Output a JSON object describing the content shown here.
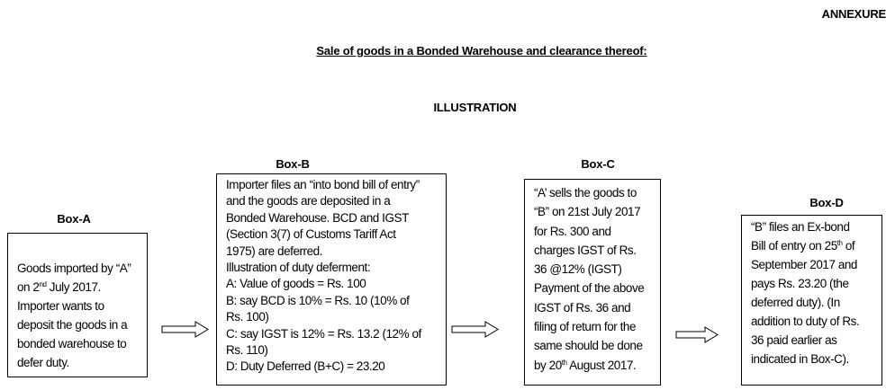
{
  "header": {
    "annexure": "ANNEXURE",
    "title": "Sale of goods in a Bonded Warehouse and clearance thereof:",
    "subtitle": "ILLUSTRATION"
  },
  "boxes": [
    {
      "label": "Box-A",
      "lines": [
        {
          "a": "Goods imported by “A”"
        },
        {
          "a": "on 2",
          "sup": "nd",
          "b": " July 2017."
        },
        {
          "a": "Importer wants to"
        },
        {
          "a": "deposit the goods in a"
        },
        {
          "a": "bonded warehouse to"
        },
        {
          "a": "defer duty."
        }
      ]
    },
    {
      "label": "Box-B",
      "lines": [
        {
          "a": "Importer files an “into bond bill of entry”"
        },
        {
          "a": "and the goods are deposited in a"
        },
        {
          "a": "Bonded Warehouse. BCD and IGST"
        },
        {
          "a": "(Section 3(7) of Customs Tariff Act"
        },
        {
          "a": "1975) are deferred."
        },
        {
          "a": "Illustration of duty deferment:"
        },
        {
          "a": "A: Value of goods = Rs. 100"
        },
        {
          "a": "B: say BCD is 10% = Rs. 10 (10% of"
        },
        {
          "a": "Rs. 100)"
        },
        {
          "a": "C: say IGST is 12% = Rs. 13.2 (12% of"
        },
        {
          "a": "Rs. 110)"
        },
        {
          "a": "D: Duty Deferred (B+C) = 23.20"
        }
      ]
    },
    {
      "label": "Box-C",
      "lines": [
        {
          "a": "“A’ sells the goods to"
        },
        {
          "a": "“B” on 21st July 2017"
        },
        {
          "a": "for Rs. 300 and"
        },
        {
          "a": "charges IGST of Rs."
        },
        {
          "a": "36 @12% (IGST)"
        },
        {
          "a": "Payment of the above"
        },
        {
          "a": "IGST of Rs. 36 and"
        },
        {
          "a": "filing of return for the"
        },
        {
          "a": "same should be done"
        },
        {
          "a": "by 20",
          "sup": "th",
          "b": " August 2017."
        }
      ]
    },
    {
      "label": "Box-D",
      "lines": [
        {
          "a": "“B” files an Ex-bond"
        },
        {
          "a": "Bill of entry on 25",
          "sup": "th",
          "b": " of"
        },
        {
          "a": "September 2017 and"
        },
        {
          "a": "pays Rs. 23.20 (the"
        },
        {
          "a": "deferred duty). (In"
        },
        {
          "a": "addition to duty of Rs."
        },
        {
          "a": "36 paid earlier as"
        },
        {
          "a": "indicated in Box-C)."
        }
      ]
    }
  ],
  "arrow_icon": "right-arrow-outline"
}
